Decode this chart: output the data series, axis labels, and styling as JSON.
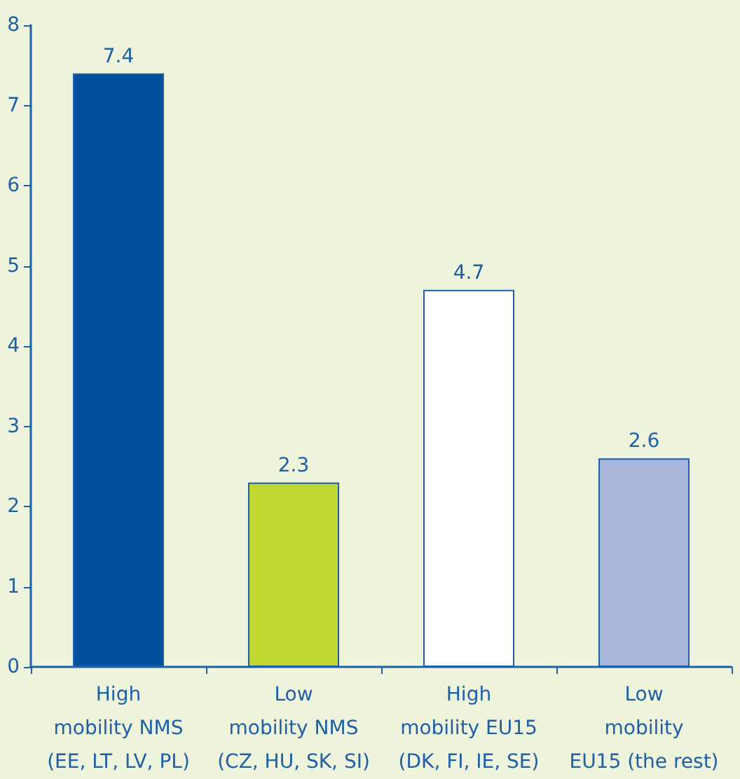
{
  "chart_data": {
    "type": "bar",
    "categories": [
      "High\nmobility NMS\n(EE, LT, LV, PL)",
      "Low\nmobility NMS\n(CZ, HU, SK, SI)",
      "High\nmobility EU15\n(DK, FI, IE, SE)",
      "Low\nmobility\nEU15 (the rest)"
    ],
    "values": [
      7.4,
      2.3,
      4.7,
      2.6
    ],
    "colors": [
      "#00509e",
      "#bfd730",
      "#ffffff",
      "#a9b7dc"
    ],
    "ylim": [
      0,
      8
    ],
    "yticks": [
      0,
      1,
      2,
      3,
      4,
      5,
      6,
      7,
      8
    ],
    "data_labels": true
  }
}
